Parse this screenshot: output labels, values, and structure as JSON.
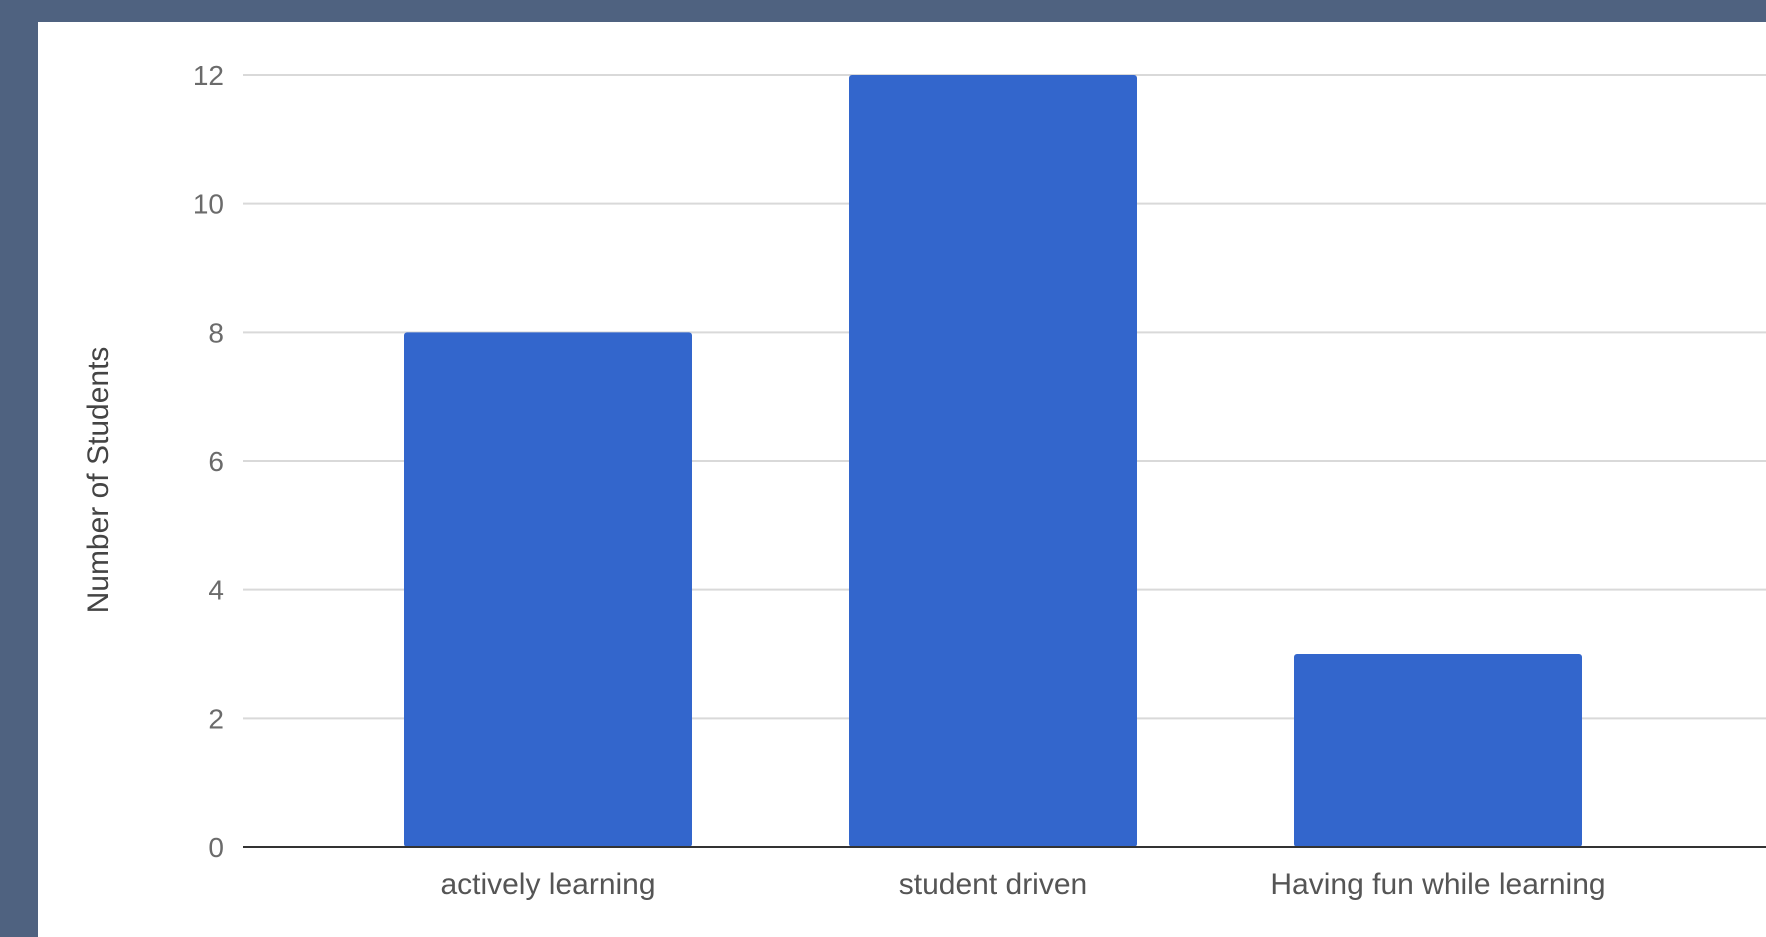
{
  "chart_data": {
    "type": "bar",
    "title": "",
    "xlabel": "",
    "ylabel": "Number of Students",
    "categories": [
      "actively learning",
      "student driven",
      "Having fun while learning"
    ],
    "values": [
      8,
      12,
      3
    ],
    "ylim": [
      0,
      12
    ],
    "yticks": [
      "0",
      "2",
      "4",
      "6",
      "8",
      "10",
      "12"
    ],
    "grid": true,
    "legend": "none",
    "colors": {
      "bar": "#3366cc",
      "grid": "#d9d9d9",
      "baseline": "#333333",
      "background": "#ffffff",
      "frame": "#4f6280"
    }
  }
}
